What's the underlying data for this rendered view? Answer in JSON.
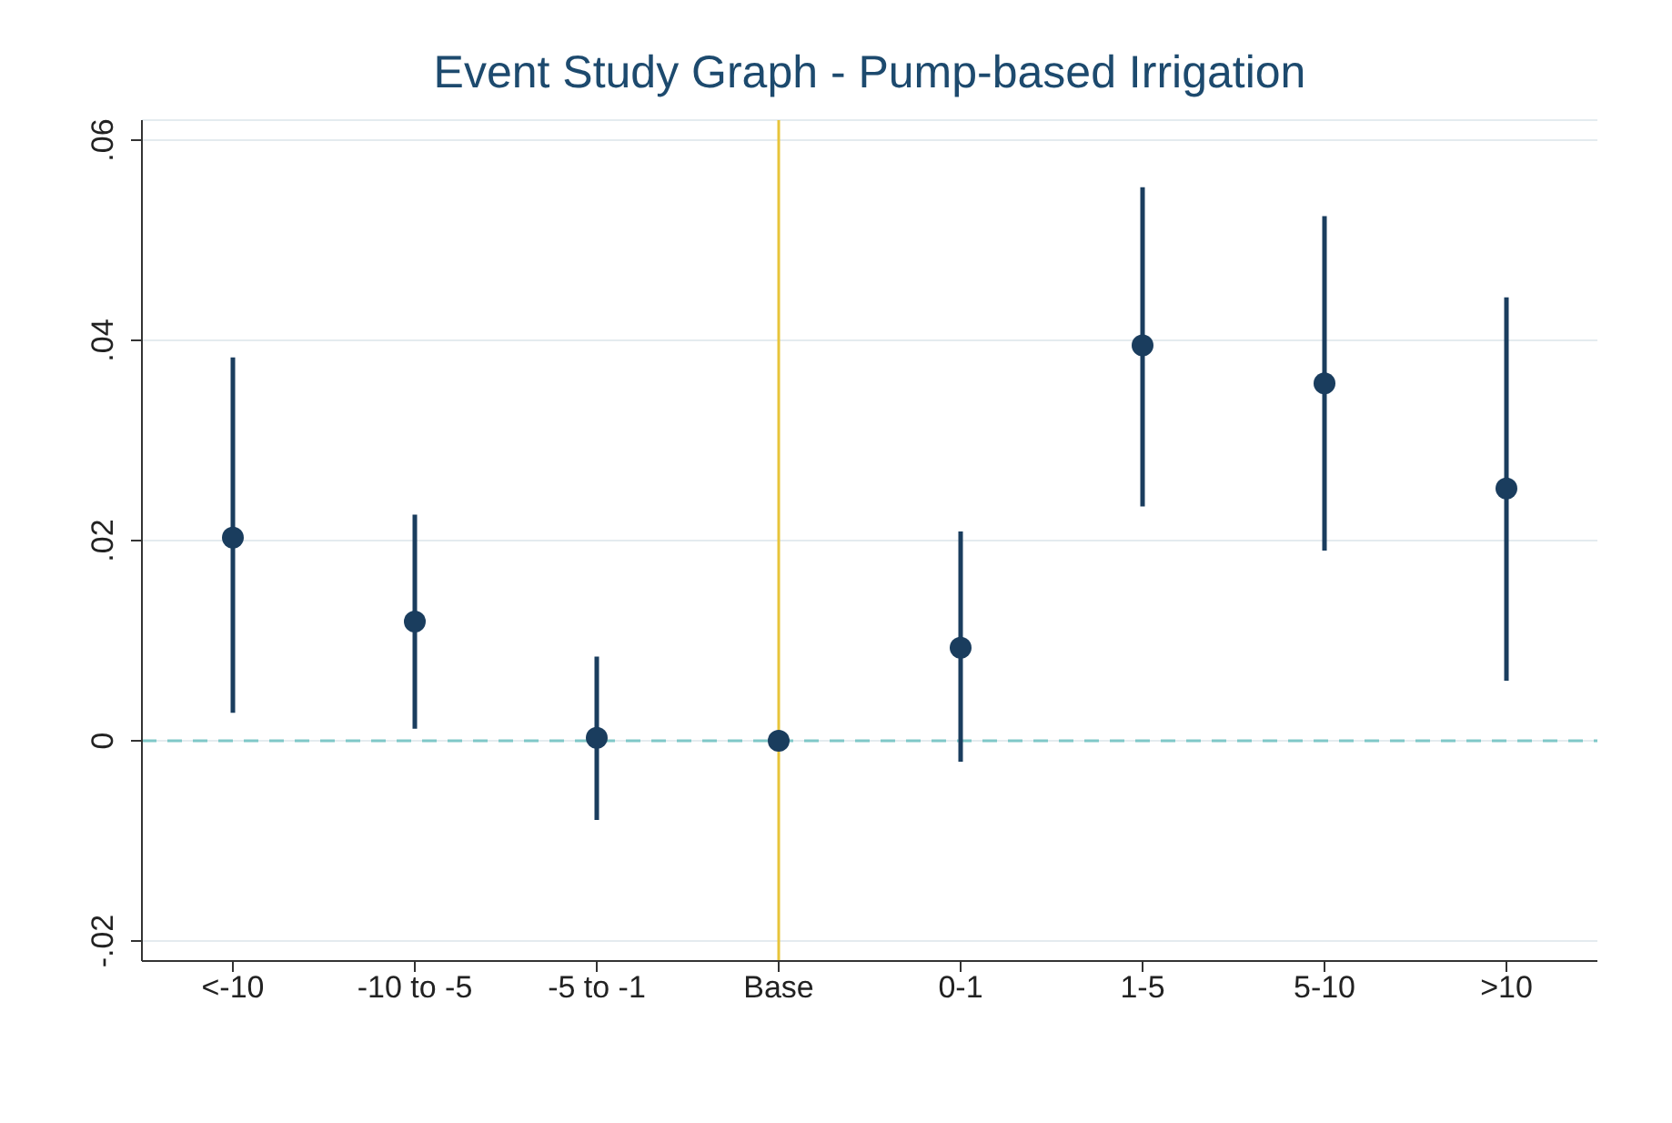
{
  "chart_data": {
    "type": "scatter",
    "title": "Event Study Graph - Pump-based Irrigation",
    "categories": [
      "<-10",
      "-10 to -5",
      "-5 to -1",
      "Base",
      "0-1",
      "1-5",
      "5-10",
      ">10"
    ],
    "series": [
      {
        "color": "#1a3d5e",
        "values": [
          0.0203,
          0.0119,
          0.0003,
          0,
          0.0093,
          0.0395,
          0.0357,
          0.0252
        ],
        "errors": [
          [
            0.0028,
            0.0383
          ],
          [
            0.0012,
            0.0226
          ],
          [
            -0.0079,
            0.0084
          ],
          null,
          [
            -0.0021,
            0.0209
          ],
          [
            0.0234,
            0.0553
          ],
          [
            0.019,
            0.0524
          ],
          [
            0.006,
            0.0443
          ]
        ]
      }
    ],
    "ylim": [
      -0.022,
      0.062
    ],
    "yticks": [
      {
        "value": -0.02,
        "label": "-.02"
      },
      {
        "value": 0,
        "label": "0"
      },
      {
        "value": 0.02,
        "label": ".02"
      },
      {
        "value": 0.04,
        "label": ".04"
      },
      {
        "value": 0.06,
        "label": ".06"
      }
    ],
    "grid": "y",
    "marker": "circle",
    "ref_lines": [
      {
        "axis": "y",
        "value": 0,
        "color": "#7fc8c8",
        "line_style": "dashed"
      },
      {
        "axis": "x",
        "value": "Base",
        "color": "#e8c43a",
        "line_style": "solid"
      }
    ]
  }
}
